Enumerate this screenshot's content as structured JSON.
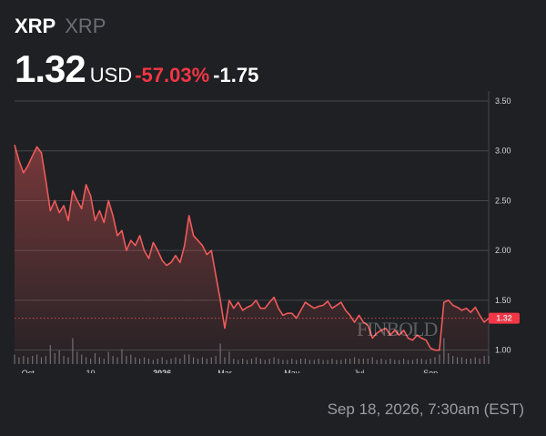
{
  "header": {
    "symbol": "XRP",
    "name": "XRP",
    "price": "1.32",
    "currency": "USD",
    "change_pct": "-57.03%",
    "change_abs": "-1.75"
  },
  "watermark": "FINBOLD",
  "timestamp": "Sep 18, 2026, 7:30am (EST)",
  "colors": {
    "background": "#1f2023",
    "line": "#f05a5a",
    "negative": "#f23645",
    "grid": "#45474d",
    "volume": "#6b6e74",
    "price_tag": "#f23645"
  },
  "chart_data": {
    "type": "line",
    "series": [
      {
        "values": [
          3.06,
          2.9,
          2.78,
          2.85,
          2.95,
          3.04,
          2.98,
          2.7,
          2.4,
          2.5,
          2.38,
          2.45,
          2.3,
          2.6,
          2.5,
          2.42,
          2.66,
          2.55,
          2.3,
          2.4,
          2.28,
          2.5,
          2.35,
          2.15,
          2.2,
          2.0,
          2.1,
          2.05,
          2.15,
          2.0,
          1.92,
          2.08,
          2.0,
          1.9,
          1.85,
          1.88,
          1.95,
          1.88,
          2.05,
          2.35,
          2.15,
          2.1,
          2.05,
          1.96,
          2.0,
          1.75,
          1.5,
          1.22,
          1.5,
          1.42,
          1.48,
          1.4,
          1.43,
          1.45,
          1.5,
          1.42,
          1.42,
          1.48,
          1.53,
          1.42,
          1.35,
          1.37,
          1.37,
          1.32,
          1.4,
          1.48,
          1.45,
          1.42,
          1.44,
          1.45,
          1.49,
          1.42,
          1.45,
          1.48,
          1.4,
          1.35,
          1.28,
          1.35,
          1.28,
          1.25,
          1.12,
          1.17,
          1.2,
          1.22,
          1.15,
          1.2,
          1.15,
          1.2,
          1.12,
          1.1,
          1.15,
          1.12,
          1.1,
          1.02,
          1.0,
          1.0,
          1.48,
          1.5,
          1.45,
          1.43,
          1.4,
          1.42,
          1.38,
          1.43,
          1.35,
          1.28,
          1.32
        ]
      }
    ],
    "volume": [
      0.35,
      0.25,
      0.3,
      0.25,
      0.3,
      0.35,
      0.25,
      0.3,
      0.7,
      0.4,
      0.5,
      0.3,
      0.25,
      0.95,
      0.45,
      0.35,
      0.25,
      0.2,
      0.4,
      0.25,
      0.2,
      0.45,
      0.3,
      0.25,
      0.55,
      0.3,
      0.35,
      0.25,
      0.2,
      0.25,
      0.2,
      0.15,
      0.2,
      0.25,
      0.15,
      0.2,
      0.25,
      0.2,
      0.35,
      0.35,
      0.25,
      0.2,
      0.25,
      0.2,
      0.25,
      0.3,
      0.75,
      0.25,
      0.45,
      0.2,
      0.15,
      0.2,
      0.15,
      0.2,
      0.25,
      0.2,
      0.15,
      0.2,
      0.25,
      0.2,
      0.15,
      0.15,
      0.2,
      0.15,
      0.2,
      0.2,
      0.15,
      0.15,
      0.2,
      0.15,
      0.15,
      0.2,
      0.15,
      0.15,
      0.2,
      0.2,
      0.25,
      0.2,
      0.2,
      0.2,
      0.25,
      0.15,
      0.2,
      0.15,
      0.2,
      0.15,
      0.15,
      0.2,
      0.15,
      0.15,
      0.2,
      0.2,
      0.15,
      0.2,
      0.25,
      0.35,
      0.95,
      0.4,
      0.3,
      0.25,
      0.25,
      0.2,
      0.2,
      0.25,
      0.2,
      0.3,
      0.3
    ],
    "x_tick_labels": [
      "Oct",
      "10",
      "2026",
      "Mar",
      "May",
      "Jul",
      "Sep"
    ],
    "y_ticks": [
      "3.50",
      "3.00",
      "2.50",
      "2.00",
      "1.50",
      "1.00"
    ],
    "y_tick_values": [
      3.5,
      3.0,
      2.5,
      2.0,
      1.5,
      1.0
    ],
    "ylim": [
      0.86,
      3.6
    ],
    "last_value": 1.32,
    "last_value_label": "1.32",
    "grid": "horizontal"
  }
}
